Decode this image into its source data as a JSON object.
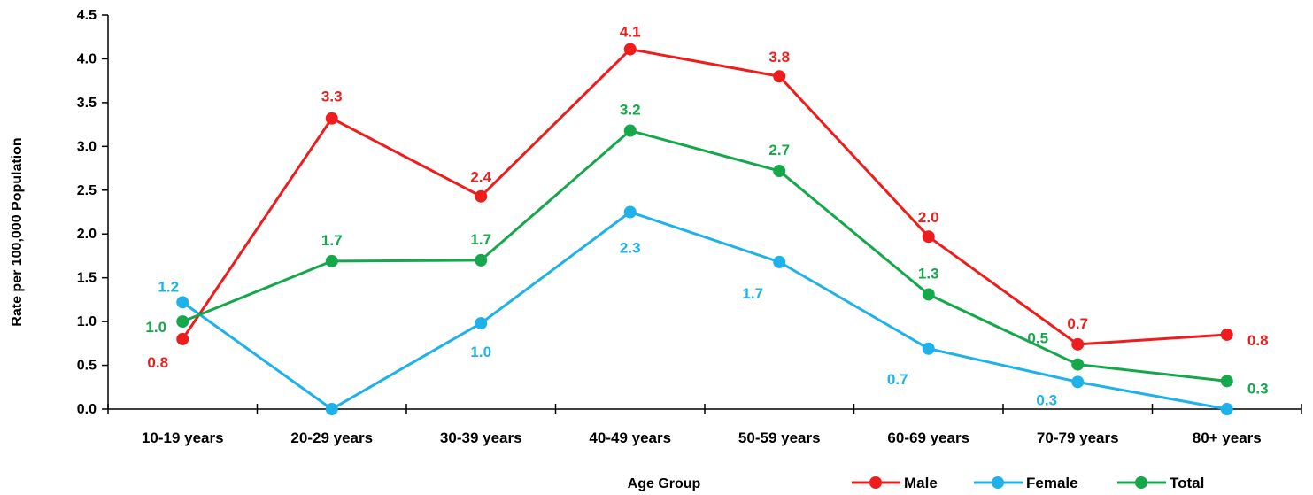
{
  "chart_data": {
    "type": "line",
    "title": "",
    "xlabel": "Age Group",
    "ylabel": "Rate per 100,000 Population",
    "categories": [
      "10-19 years",
      "20-29 years",
      "30-39 years",
      "40-49 years",
      "50-59 years",
      "60-69 years",
      "70-79 years",
      "80+ years"
    ],
    "ylim": [
      0,
      4.5
    ],
    "yticks": [
      "0.0",
      "0.5",
      "1.0",
      "1.5",
      "2.0",
      "2.5",
      "3.0",
      "3.5",
      "4.0",
      "4.5"
    ],
    "grid": false,
    "legend_position": "bottom-right",
    "series": [
      {
        "name": "Male",
        "color": "#ee1c1c",
        "values": [
          0.8,
          3.32,
          2.43,
          4.11,
          3.8,
          1.97,
          0.74,
          0.85
        ],
        "labels": [
          "0.8",
          "3.3",
          "2.4",
          "4.1",
          "3.8",
          "2.0",
          "0.7",
          "0.8"
        ]
      },
      {
        "name": "Female",
        "color": "#1fb1e9",
        "values": [
          1.22,
          0.0,
          0.98,
          2.25,
          1.68,
          0.69,
          0.31,
          0.0
        ],
        "labels": [
          "1.2",
          "",
          "1.0",
          "2.3",
          "1.7",
          "0.7",
          "0.3",
          ""
        ]
      },
      {
        "name": "Total",
        "color": "#14a84b",
        "values": [
          1.0,
          1.69,
          1.7,
          3.18,
          2.72,
          1.31,
          0.51,
          0.32
        ],
        "labels": [
          "1.0",
          "1.7",
          "1.7",
          "3.2",
          "2.7",
          "1.3",
          "0.5",
          "0.3"
        ]
      }
    ]
  }
}
